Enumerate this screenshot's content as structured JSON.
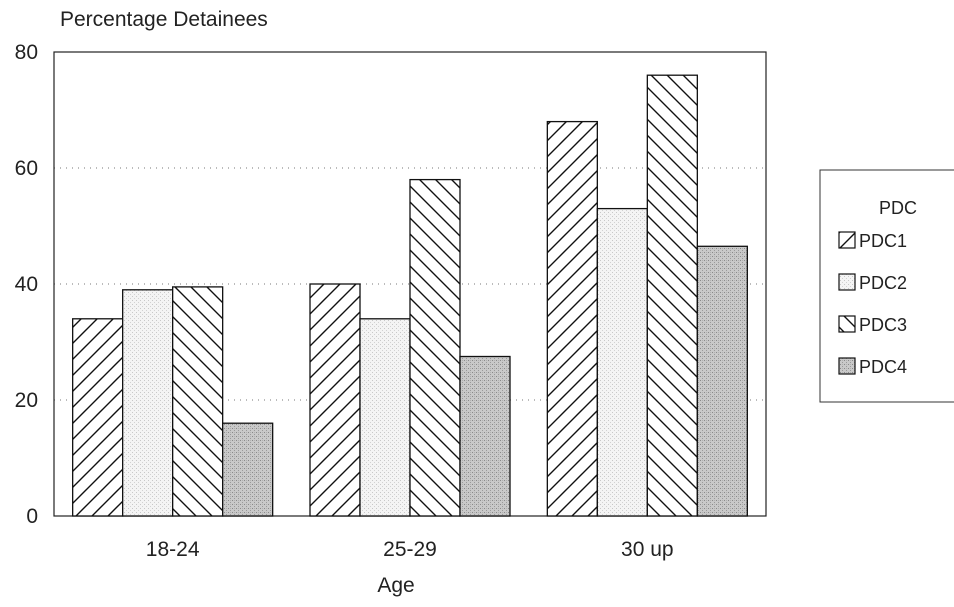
{
  "chart_data": {
    "type": "bar",
    "title": "Percentage Detainees",
    "xlabel": "Age",
    "ylabel": "",
    "categories": [
      "18-24",
      "25-29",
      "30 up"
    ],
    "ylim": [
      0,
      80
    ],
    "yticks": [
      0,
      20,
      40,
      60,
      80
    ],
    "grid": "dotted horizontal",
    "legend_title": "PDC",
    "legend_position": "right",
    "series": [
      {
        "name": "PDC1",
        "pattern": "diagonal-forward",
        "values": [
          34,
          40,
          68
        ]
      },
      {
        "name": "PDC2",
        "pattern": "light-stipple",
        "values": [
          39,
          34,
          53
        ]
      },
      {
        "name": "PDC3",
        "pattern": "diagonal-backward",
        "values": [
          39.5,
          58,
          76
        ]
      },
      {
        "name": "PDC4",
        "pattern": "dark-stipple",
        "values": [
          16,
          27.5,
          46.5
        ]
      }
    ]
  }
}
